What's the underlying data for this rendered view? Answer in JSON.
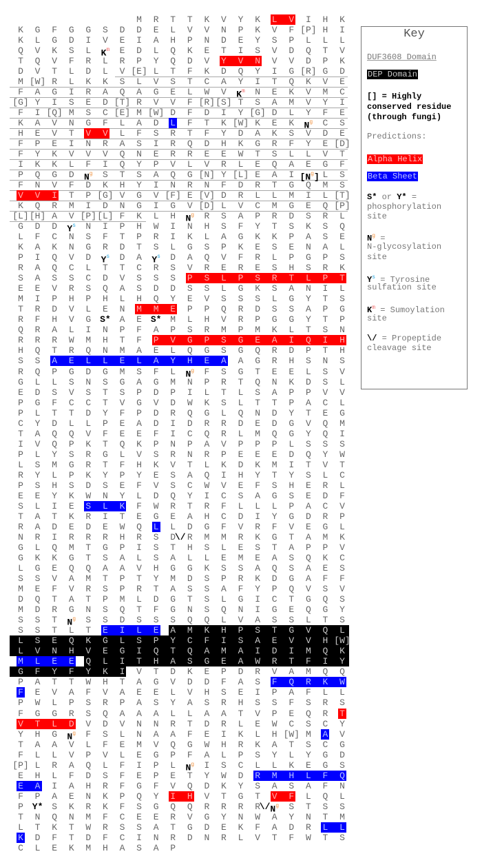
{
  "colors": {
    "alpha": "#ff0000",
    "beta": "#0000ff",
    "dep": "#000000",
    "glyco": "#f0903c",
    "sulf": "#2aa8e0",
    "sumo": "#f06a6a"
  },
  "rows": [
    {
      "seq": "M R T T K V Y K L V I H K",
      "start": 8,
      "alpha": [
        [
          16,
          17
        ]
      ]
    },
    {
      "seq": "K G F G G S D D E L V V N P K V F [P] H I"
    },
    {
      "seq": "K L G D I V E I A H P N D E Y S P L L L"
    },
    {
      "seq": "Q V K S L K^m E D L Q K E T I S V D Q T V"
    },
    {
      "seq": "T Q V F R L R P Y Q D V Y V N V V D P K",
      "alpha": [
        [
          13,
          15
        ]
      ]
    },
    {
      "seq": "D V T L D L V [E] L T F K D Q Y I G [R] G D",
      "duf": [
        [
          7,
          20
        ]
      ]
    },
    {
      "seq": "M [W] R L K K S L V S T C A Y I T Q K V E",
      "duf": [
        [
          1,
          20
        ]
      ]
    },
    {
      "seq": "F A G I R A Q A G E L W V K^m N E K V M C",
      "duf": [
        [
          1,
          20
        ]
      ]
    },
    {
      "seq": "[G] Y I S E D [T] R V V F [R] [S] T S A M V Y I",
      "duf": [
        [
          1,
          20
        ]
      ]
    },
    {
      "seq": "F I [Q] M S C [E] M [W] D F D I Y [G] D L Y F E",
      "duf": [
        [
          1,
          20
        ]
      ]
    },
    {
      "seq": "K A V N G F L A D L F T K [W] K E K N^g C S",
      "beta": [
        [
          10,
          10
        ]
      ],
      "duf": [
        [
          1,
          20
        ]
      ]
    },
    {
      "seq": "H E V T V V L F S R T F Y D A K S V D E",
      "alpha": [
        [
          5,
          6
        ]
      ],
      "duf": [
        [
          1,
          20
        ]
      ]
    },
    {
      "seq": "F P E I N R A S I R Q D H K G R F Y E [D]",
      "duf": [
        [
          1,
          20
        ]
      ]
    },
    {
      "seq": "F Y K V V V Q N E R R E E W T S L L V T",
      "duf": [
        [
          1,
          20
        ]
      ]
    },
    {
      "seq": "I K K L F I Q Y P V L V R L E Q A E G F",
      "duf": [
        [
          1,
          20
        ]
      ]
    },
    {
      "seq": "P Q G D N^g S T S A Q G [N] Y [L] E A I [N^g] L S",
      "duf": [
        [
          1,
          20
        ]
      ]
    },
    {
      "seq": "F N V F D K H Y I N R N F D R T G Q M S",
      "duf": [
        [
          1,
          20
        ]
      ]
    },
    {
      "seq": "V V I T P [G] V G V [F] E [V] D R L L M I L [T]",
      "alpha": [
        [
          1,
          3
        ]
      ],
      "duf": [
        [
          1,
          20
        ]
      ]
    },
    {
      "seq": "K Q R M I D N G I G V [D] L V C M G E Q [P]",
      "duf": [
        [
          1,
          20
        ]
      ]
    },
    {
      "seq": "[L] [H] A V [P] [L] F K L H N^g R S A P R D S R L",
      "duf": [
        [
          1,
          8
        ]
      ]
    },
    {
      "seq": "G D D Y^s N I P H W I N H S F Y T S K S Q"
    },
    {
      "seq": "L F C N S F T P R I K L A G K K P A S E"
    },
    {
      "seq": "K A K N G R D T S L G S P K E S E N A L"
    },
    {
      "seq": "P I Q V D Y^s D A Y^s D A Q V F R L P G P S"
    },
    {
      "seq": "R A Q C L T T C R S V R E R E S H S R K"
    },
    {
      "seq": "S A S S C D V S S S P S L P S R T L P T",
      "alpha": [
        [
          11,
          20
        ]
      ]
    },
    {
      "seq": "E E V R S Q A S D D S S L G K S A N I L"
    },
    {
      "seq": "M I P H P H L H Q Y E V S S S L G Y T S"
    },
    {
      "seq": "T R D V L E N M M E P P Q R D S S A P G",
      "alpha": [
        [
          8,
          10
        ]
      ]
    },
    {
      "seq": "R F H V G S* A E S* M L H V R P G G Y T P"
    },
    {
      "seq": "Q R A L I N P F A P S R M P M K L T S N"
    },
    {
      "seq": "R R R W M H T F P V G P S G E A I Q I H",
      "alpha": [
        [
          9,
          20
        ]
      ]
    },
    {
      "seq": "H Q T R Q N M A E L Q G S G Q R D P T H"
    },
    {
      "seq": "S S A E L L E L A Y H E A A G R H S N S",
      "beta": [
        [
          3,
          13
        ]
      ]
    },
    {
      "seq": "R Q P G D G M S F L N^g F S G T E E L S V"
    },
    {
      "seq": "G L L S N S G A G M N P R T Q N K D S L"
    },
    {
      "seq": "E D S V S T S P D P I L T L S A P P V V"
    },
    {
      "seq": "P G F C C T V G V D W K S L T T P A C L"
    },
    {
      "seq": "P L T T D Y F P D R Q G L Q N D Y T E G"
    },
    {
      "seq": "C Y D L L P E A D I D R R D E D G V Q M"
    },
    {
      "seq": "T A Q Q V F E E F I C Q R L M Q G Y Q I"
    },
    {
      "seq": "I V Q P K T Q K P N P A V P P P L S S S"
    },
    {
      "seq": "P L Y S R G L V S R N R P E E E D Q Y W"
    },
    {
      "seq": "L S M G R T F H K V T L K D K M I T V T"
    },
    {
      "seq": "R Y L P K Y P Y E S A Q I H Y T Y S L C"
    },
    {
      "seq": "P S H S D S E F V S C W V E F S H E R L"
    },
    {
      "seq": "E E Y K W N Y L D Q Y I C S A G S E D F"
    },
    {
      "seq": "S L I E S L K F W R T R F L L L P A C V",
      "beta": [
        [
          5,
          7
        ]
      ]
    },
    {
      "seq": "T A T K R I T E G E A H C D I Y G D R P"
    },
    {
      "seq": "R A D E D E W Q L L D G F V R F V E G L",
      "beta": [
        [
          9,
          9
        ]
      ]
    },
    {
      "seq": "N R I R R R H R S D\\/ R M M R K G T A M K"
    },
    {
      "seq": "G L Q M T G P I S T H S L E S T A P P V"
    },
    {
      "seq": "G K K G T S A L S A L L E M E A S Q K C"
    },
    {
      "seq": "L G E Q Q A A V H G G K S S A Q S A E S"
    },
    {
      "seq": "S S V A M T P T Y M D S P R K D G A F F"
    },
    {
      "seq": "M E F V R S P R T A S S A F Y P Q V S V"
    },
    {
      "seq": "D Q T A T P M L D G T S L G I C T G Q S"
    },
    {
      "seq": "M D R G N S Q T F G N S Q N I G E Q G Y"
    },
    {
      "seq": "S S T N^g S S D S S S Q Q L V A S S L T S"
    },
    {
      "seq": "S S T L T E I L E A M K H P S T G V Q L",
      "beta": [
        [
          6,
          9
        ]
      ],
      "dep": [
        [
          10,
          20
        ]
      ]
    },
    {
      "seq": "L S E Q K G L S P Y C F I S A E V V H [W]",
      "dep": [
        [
          1,
          20
        ]
      ]
    },
    {
      "seq": "L V N H V E G I Q T Q A M A I D I M Q K",
      "dep": [
        [
          1,
          20
        ]
      ]
    },
    {
      "seq": "M L E E Q L I T H A S G E A W R T F I Y",
      "beta": [
        [
          1,
          4
        ]
      ],
      "dep": [
        [
          5,
          20
        ]
      ]
    },
    {
      "seq": "G F Y F Y K I V T D K E P D R V A M Q Q",
      "dep": [
        [
          1,
          7
        ]
      ]
    },
    {
      "seq": "P A T T W H T A G V D D F A S F Q R K W",
      "beta": [
        [
          16,
          20
        ]
      ]
    },
    {
      "seq": "F E V A F V A E E L V H S E I P A F L L",
      "beta": [
        [
          1,
          1
        ]
      ]
    },
    {
      "seq": "P W L P S R P A S Y A S R H S S F S R S"
    },
    {
      "seq": "F G G R S Q A A A L L A A T V P E Q R T",
      "alpha": [
        [
          20,
          20
        ]
      ]
    },
    {
      "seq": "V T L D V D V N N R T D R L E W C S C Y",
      "alpha": [
        [
          1,
          4
        ]
      ]
    },
    {
      "seq": "Y H G N^g F S L N A A F E I K L H [W] M A V",
      "beta": [
        [
          19,
          19
        ]
      ]
    },
    {
      "seq": "T A A V L F E M V Q G W H R K A T S C G"
    },
    {
      "seq": "F L L V P V L E G P F A L P S Y L Y G D"
    },
    {
      "seq": "[P] L R A Q L F I P L N^g I S C L L K E G S"
    },
    {
      "seq": "E H L F D S F E P E T Y W D R M H L F Q",
      "beta": [
        [
          15,
          20
        ]
      ]
    },
    {
      "seq": "E A I A H R F G F V Q D K Y S A S A F N",
      "beta": [
        [
          1,
          2
        ]
      ]
    },
    {
      "seq": "F P A E N K P Q Y I H V T G T V F L Q L",
      "alpha": [
        [
          10,
          11
        ],
        [
          16,
          17
        ]
      ]
    },
    {
      "seq": "P Y* S K R K F S G Q Q R R R R\\/ N^g S T S S"
    },
    {
      "seq": "T N Q N M F C E E R V G Y N W A Y N T M"
    },
    {
      "seq": "L T K T W R S S A T G D E K F A D R L L",
      "beta": [
        [
          19,
          20
        ]
      ]
    },
    {
      "seq": "K D F T D F C I N R D N R L V T F W T S",
      "beta": [
        [
          1,
          1
        ]
      ]
    },
    {
      "seq": "C L E K M H A S A P"
    }
  ],
  "key": {
    "title": "Key",
    "duf": "DUF3608 Domain",
    "dep": "DEP Domain",
    "conserved": [
      "[] = Highly",
      "conserved residue",
      "(through fungi)"
    ],
    "predictions": "Predictions:",
    "alpha": "Alpha Helix",
    "beta": "Beta Sheet",
    "phospho": {
      "s": "S*",
      "or": " or ",
      "y": "Y*",
      "eq": " =",
      "l2": "phosphorylation",
      "l3": "site"
    },
    "glyco": {
      "n": "N",
      "sup": "g",
      "eq": " =",
      "l2": "N-glycosylation",
      "l3": "site"
    },
    "sulf": {
      "y": "Y",
      "sup": "s",
      "eq": " = Tyrosine",
      "l2": "sulfation site"
    },
    "sumo": {
      "k": "K",
      "sup": "m",
      "eq": " = Sumoylation",
      "l2": "site"
    },
    "cleave": {
      "sym": "\\/",
      "eq": " = Propeptide",
      "l2": "cleavage site"
    }
  }
}
